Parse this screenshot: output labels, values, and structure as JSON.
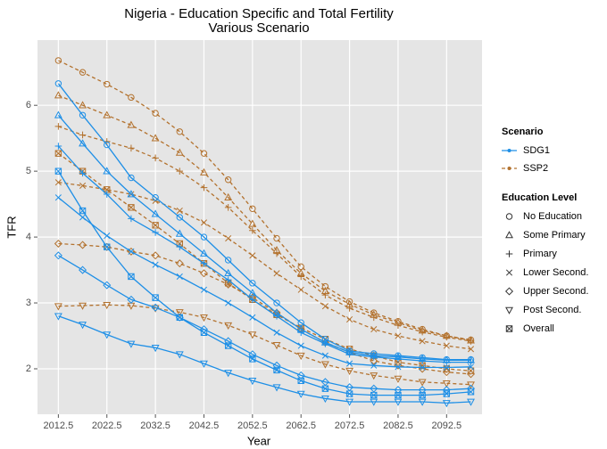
{
  "chart_data": {
    "type": "line",
    "title": "Nigeria - Education Specific and Total Fertility",
    "subtitle": "Various Scenario",
    "x_label": "Year",
    "y_label": "TFR",
    "x": [
      2012.5,
      2017.5,
      2022.5,
      2027.5,
      2032.5,
      2037.5,
      2042.5,
      2047.5,
      2052.5,
      2057.5,
      2062.5,
      2067.5,
      2072.5,
      2077.5,
      2082.5,
      2087.5,
      2092.5,
      2097.5
    ],
    "xlim": [
      2008.2,
      2099.8
    ],
    "xticks": [
      2012.5,
      2022.5,
      2032.5,
      2042.5,
      2052.5,
      2062.5,
      2072.5,
      2082.5,
      2092.5
    ],
    "ylim": [
      1.31,
      6.99
    ],
    "yticks": [
      2,
      3,
      4,
      5,
      6
    ],
    "grid": true,
    "scenario_legend": {
      "title": "Scenario",
      "items": [
        {
          "name": "SDG1",
          "color": "#1e8fe6",
          "linetype": "solid"
        },
        {
          "name": "SSP2",
          "color": "#b3722e",
          "linetype": "dashed"
        }
      ]
    },
    "level_legend": {
      "title": "Education Level",
      "items": [
        {
          "name": "No Education",
          "shape": "circle"
        },
        {
          "name": "Some Primary",
          "shape": "triangle"
        },
        {
          "name": "Primary",
          "shape": "plus"
        },
        {
          "name": "Lower Second.",
          "shape": "cross"
        },
        {
          "name": "Upper Second.",
          "shape": "diamond"
        },
        {
          "name": "Post Second.",
          "shape": "triangle-down"
        },
        {
          "name": "Overall",
          "shape": "square-cross"
        }
      ]
    },
    "series": [
      {
        "scenario": "SSP2",
        "level": "No Education",
        "values": [
          6.68,
          6.5,
          6.32,
          6.12,
          5.88,
          5.6,
          5.27,
          4.87,
          4.43,
          3.98,
          3.55,
          3.25,
          3.02,
          2.85,
          2.72,
          2.6,
          2.5,
          2.44
        ]
      },
      {
        "scenario": "SSP2",
        "level": "Some Primary",
        "values": [
          6.15,
          6.0,
          5.85,
          5.7,
          5.5,
          5.28,
          4.98,
          4.6,
          4.2,
          3.8,
          3.45,
          3.18,
          2.98,
          2.82,
          2.7,
          2.58,
          2.5,
          2.43
        ]
      },
      {
        "scenario": "SSP2",
        "level": "Primary",
        "values": [
          5.68,
          5.55,
          5.45,
          5.35,
          5.2,
          5.0,
          4.75,
          4.45,
          4.1,
          3.75,
          3.4,
          3.12,
          2.92,
          2.78,
          2.66,
          2.56,
          2.48,
          2.42
        ]
      },
      {
        "scenario": "SSP2",
        "level": "Lower Second.",
        "values": [
          4.83,
          4.78,
          4.72,
          4.65,
          4.55,
          4.4,
          4.22,
          3.98,
          3.72,
          3.45,
          3.2,
          2.95,
          2.75,
          2.6,
          2.5,
          2.42,
          2.35,
          2.3
        ]
      },
      {
        "scenario": "SSP2",
        "level": "Upper Second.",
        "values": [
          3.9,
          3.88,
          3.85,
          3.78,
          3.72,
          3.6,
          3.45,
          3.28,
          3.08,
          2.85,
          2.6,
          2.4,
          2.25,
          2.12,
          2.05,
          2.0,
          1.95,
          1.92
        ]
      },
      {
        "scenario": "SSP2",
        "level": "Post Second.",
        "values": [
          2.95,
          2.96,
          2.97,
          2.96,
          2.92,
          2.86,
          2.78,
          2.66,
          2.52,
          2.36,
          2.2,
          2.07,
          1.97,
          1.9,
          1.85,
          1.8,
          1.78,
          1.76
        ]
      },
      {
        "scenario": "SSP2",
        "level": "Overall",
        "values": [
          5.27,
          5.0,
          4.72,
          4.45,
          4.18,
          3.9,
          3.6,
          3.3,
          3.05,
          2.82,
          2.62,
          2.45,
          2.3,
          2.2,
          2.1,
          2.05,
          2.0,
          1.97
        ]
      },
      {
        "scenario": "SDG1",
        "level": "No Education",
        "values": [
          6.33,
          5.85,
          5.4,
          4.9,
          4.6,
          4.3,
          4.0,
          3.65,
          3.3,
          3.0,
          2.7,
          2.45,
          2.27,
          2.23,
          2.2,
          2.17,
          2.14,
          2.14
        ]
      },
      {
        "scenario": "SDG1",
        "level": "Some Primary",
        "values": [
          5.85,
          5.42,
          5.0,
          4.65,
          4.35,
          4.05,
          3.75,
          3.45,
          3.15,
          2.85,
          2.6,
          2.4,
          2.25,
          2.2,
          2.18,
          2.15,
          2.13,
          2.13
        ]
      },
      {
        "scenario": "SDG1",
        "level": "Primary",
        "values": [
          5.38,
          4.97,
          4.65,
          4.28,
          4.07,
          3.85,
          3.6,
          3.35,
          3.05,
          2.8,
          2.55,
          2.38,
          2.22,
          2.18,
          2.15,
          2.12,
          2.1,
          2.1
        ]
      },
      {
        "scenario": "SDG1",
        "level": "Lower Second.",
        "values": [
          4.6,
          4.3,
          4.02,
          3.78,
          3.58,
          3.4,
          3.2,
          3.0,
          2.78,
          2.55,
          2.35,
          2.2,
          2.08,
          2.05,
          2.03,
          2.02,
          2.02,
          2.03
        ]
      },
      {
        "scenario": "SDG1",
        "level": "Upper Second.",
        "values": [
          3.72,
          3.5,
          3.27,
          3.05,
          2.93,
          2.78,
          2.6,
          2.42,
          2.22,
          2.05,
          1.9,
          1.8,
          1.72,
          1.7,
          1.68,
          1.68,
          1.68,
          1.7
        ]
      },
      {
        "scenario": "SDG1",
        "level": "Post Second.",
        "values": [
          2.8,
          2.67,
          2.52,
          2.38,
          2.32,
          2.22,
          2.08,
          1.94,
          1.82,
          1.72,
          1.62,
          1.55,
          1.5,
          1.5,
          1.5,
          1.5,
          1.48,
          1.5
        ]
      },
      {
        "scenario": "SDG1",
        "level": "Overall",
        "values": [
          5.0,
          4.4,
          3.85,
          3.4,
          3.08,
          2.78,
          2.55,
          2.35,
          2.15,
          1.98,
          1.82,
          1.7,
          1.62,
          1.6,
          1.6,
          1.6,
          1.62,
          1.65
        ]
      }
    ]
  }
}
